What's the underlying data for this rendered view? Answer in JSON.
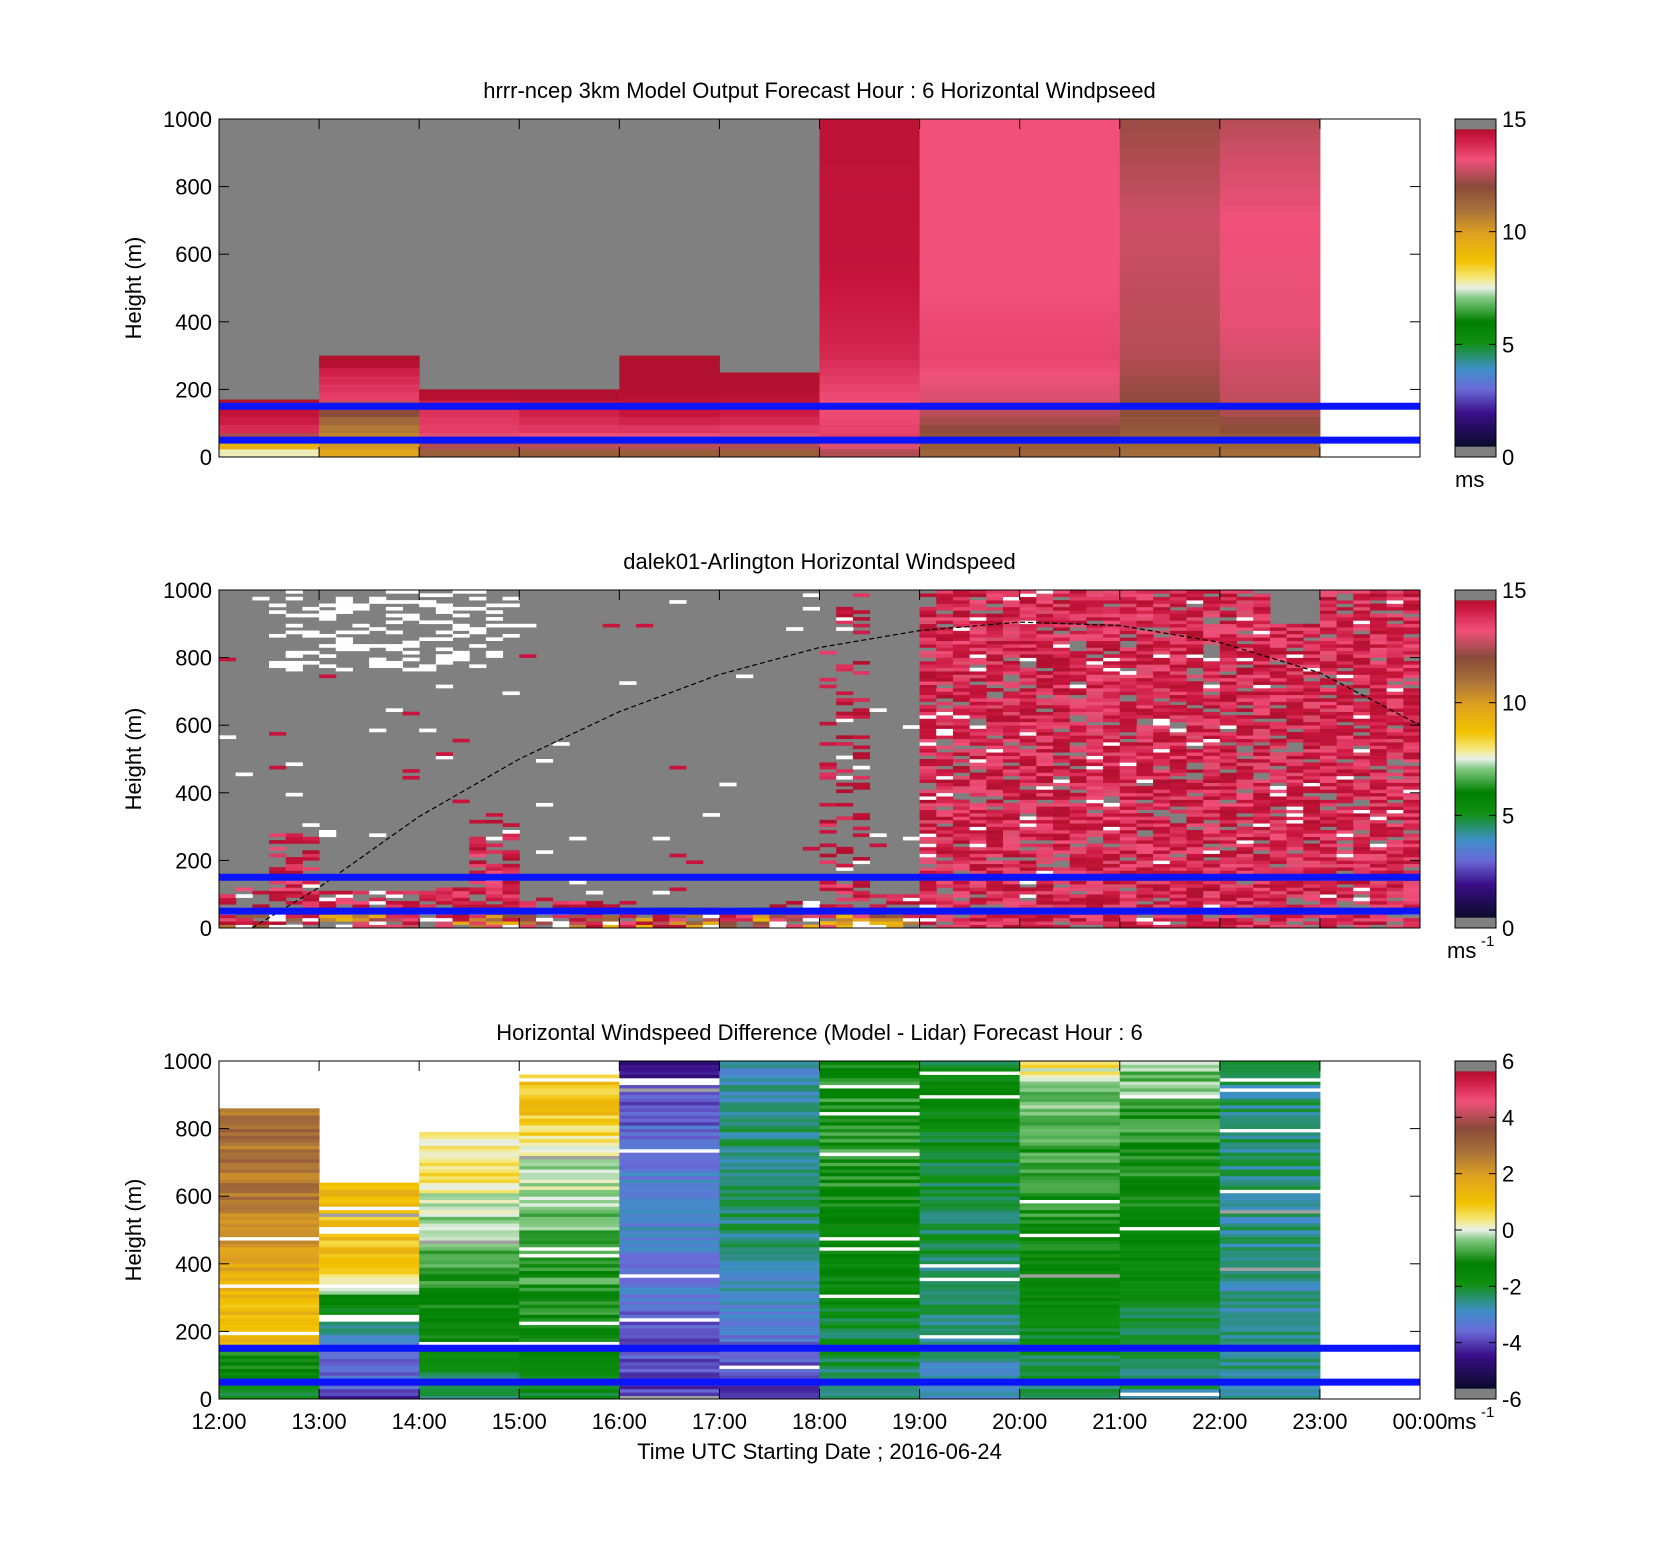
{
  "chart_data": [
    {
      "type": "heatmap",
      "title": "hrrr-ncep 3km Model Output   Forecast Hour : 6 Horizontal Windpseed",
      "ylabel": "Height (m)",
      "xlabel": "",
      "xlim": [
        12,
        24
      ],
      "ylim": [
        0,
        1000
      ],
      "yticks": [
        0,
        200,
        400,
        600,
        800,
        1000
      ],
      "xticks": [
        12,
        13,
        14,
        15,
        16,
        17,
        18,
        19,
        20,
        21,
        22,
        23,
        24
      ],
      "colorbar": {
        "min": 0,
        "max": 15,
        "ticks": [
          0,
          5,
          10,
          15
        ],
        "units": "ms",
        "units_sup": "",
        "scale": "speed"
      },
      "reference_lines": [
        150,
        50
      ],
      "column_profiles": [
        {
          "t0": 12,
          "t1": 13,
          "stops": [
            [
              0,
              6.5
            ],
            [
              30,
              9.5
            ],
            [
              50,
              9
            ],
            [
              60,
              12.4
            ],
            [
              80,
              13.8
            ],
            [
              140,
              14.5
            ],
            [
              170,
              15.5
            ]
          ]
        },
        {
          "t0": 13,
          "t1": 14,
          "stops": [
            [
              0,
              9.5
            ],
            [
              40,
              10.2
            ],
            [
              100,
              11
            ],
            [
              150,
              12.5
            ],
            [
              180,
              13.5
            ],
            [
              250,
              14
            ],
            [
              300,
              15.5
            ]
          ]
        },
        {
          "t0": 14,
          "t1": 15,
          "stops": [
            [
              0,
              11
            ],
            [
              40,
              12.6
            ],
            [
              80,
              13.5
            ],
            [
              150,
              13.8
            ],
            [
              200,
              15.5
            ]
          ]
        },
        {
          "t0": 15,
          "t1": 16,
          "stops": [
            [
              0,
              11
            ],
            [
              40,
              12.7
            ],
            [
              80,
              13.6
            ],
            [
              150,
              14.2
            ],
            [
              200,
              15.5
            ]
          ]
        },
        {
          "t0": 16,
          "t1": 17,
          "stops": [
            [
              0,
              11
            ],
            [
              40,
              12.7
            ],
            [
              90,
              13.8
            ],
            [
              160,
              14.6
            ],
            [
              300,
              15.5
            ]
          ]
        },
        {
          "t0": 17,
          "t1": 18,
          "stops": [
            [
              0,
              11
            ],
            [
              40,
              12.6
            ],
            [
              90,
              13.7
            ],
            [
              160,
              14.4
            ],
            [
              250,
              15.5
            ]
          ]
        },
        {
          "t0": 18,
          "t1": 19,
          "stops": [
            [
              0,
              12.2
            ],
            [
              60,
              13.5
            ],
            [
              160,
              13.2
            ],
            [
              300,
              13.9
            ],
            [
              600,
              14.4
            ],
            [
              1000,
              14.6
            ]
          ]
        },
        {
          "t0": 19,
          "t1": 20,
          "stops": [
            [
              0,
              11.2
            ],
            [
              60,
              11.8
            ],
            [
              160,
              12.9
            ],
            [
              300,
              13.4
            ],
            [
              500,
              13.2
            ],
            [
              1000,
              13.2
            ]
          ]
        },
        {
          "t0": 20,
          "t1": 21,
          "stops": [
            [
              0,
              11.2
            ],
            [
              60,
              11.8
            ],
            [
              160,
              12.9
            ],
            [
              300,
              13.4
            ],
            [
              500,
              13.2
            ],
            [
              1000,
              13.2
            ]
          ]
        },
        {
          "t0": 21,
          "t1": 22,
          "stops": [
            [
              0,
              11
            ],
            [
              60,
              11.5
            ],
            [
              150,
              12
            ],
            [
              300,
              12.5
            ],
            [
              700,
              12.8
            ],
            [
              1000,
              12.2
            ]
          ]
        },
        {
          "t0": 22,
          "t1": 23,
          "stops": [
            [
              0,
              11
            ],
            [
              60,
              11.6
            ],
            [
              150,
              12.6
            ],
            [
              400,
              13.1
            ],
            [
              700,
              13.2
            ],
            [
              900,
              12.8
            ],
            [
              1000,
              12.5
            ]
          ]
        }
      ],
      "background": "gray"
    },
    {
      "type": "heatmap",
      "title": "dalek01-Arlington  Horizontal Windspeed",
      "ylabel": "Height (m)",
      "xlabel": "",
      "xlim": [
        12,
        24
      ],
      "ylim": [
        0,
        1000
      ],
      "yticks": [
        0,
        200,
        400,
        600,
        800,
        1000
      ],
      "xticks": [
        12,
        13,
        14,
        15,
        16,
        17,
        18,
        19,
        20,
        21,
        22,
        23,
        24
      ],
      "colorbar": {
        "min": 0,
        "max": 15,
        "ticks": [
          0,
          5,
          10,
          15
        ],
        "units": "ms",
        "units_sup": "-1",
        "scale": "speed"
      },
      "reference_lines": [
        150,
        50
      ],
      "curve": {
        "style": "dashed",
        "points": [
          [
            12.33,
            0
          ],
          [
            13,
            120
          ],
          [
            14,
            330
          ],
          [
            15,
            500
          ],
          [
            16,
            640
          ],
          [
            17,
            750
          ],
          [
            18,
            830
          ],
          [
            19,
            880
          ],
          [
            20,
            905
          ],
          [
            21,
            895
          ],
          [
            22,
            845
          ],
          [
            23,
            755
          ],
          [
            24,
            600
          ]
        ]
      },
      "column_profiles_30min": [
        {
          "t0": 12.0,
          "top": 120
        },
        {
          "t0": 12.5,
          "top": 280
        },
        {
          "t0": 13.0,
          "top": 110
        },
        {
          "t0": 13.5,
          "top": 110
        },
        {
          "t0": 14.0,
          "top": 120
        },
        {
          "t0": 14.5,
          "top": 320
        },
        {
          "t0": 15.0,
          "top": 90
        },
        {
          "t0": 15.5,
          "top": 80
        },
        {
          "t0": 16.0,
          "top": 60
        },
        {
          "t0": 16.5,
          "top": 60
        },
        {
          "t0": 17.0,
          "top": 60
        },
        {
          "t0": 17.5,
          "top": 80
        },
        {
          "t0": 18.0,
          "top": 1000,
          "sparse": true
        },
        {
          "t0": 18.5,
          "top": 100
        },
        {
          "t0": 19.0,
          "top": 1000
        },
        {
          "t0": 19.5,
          "top": 1000
        },
        {
          "t0": 20.0,
          "top": 1000
        },
        {
          "t0": 20.5,
          "top": 1000
        },
        {
          "t0": 21.0,
          "top": 1000
        },
        {
          "t0": 21.5,
          "top": 1000
        },
        {
          "t0": 22.0,
          "top": 1000
        },
        {
          "t0": 22.5,
          "top": 900
        },
        {
          "t0": 23.0,
          "top": 1000
        },
        {
          "t0": 23.5,
          "top": 1000
        }
      ],
      "background": "gray"
    },
    {
      "type": "heatmap",
      "title": "Horizontal Windspeed Difference (Model - Lidar) Forecast Hour : 6",
      "ylabel": "Height (m)",
      "xlabel": "Time UTC  Starting Date ; 2016-06-24",
      "xlim": [
        12,
        24
      ],
      "ylim": [
        0,
        1000
      ],
      "yticks": [
        0,
        200,
        400,
        600,
        800,
        1000
      ],
      "xticks": [
        12,
        13,
        14,
        15,
        16,
        17,
        18,
        19,
        20,
        21,
        22,
        23,
        24
      ],
      "xtick_labels": [
        "12:00",
        "13:00",
        "14:00",
        "15:00",
        "16:00",
        "17:00",
        "18:00",
        "19:00",
        "20:00",
        "21:00",
        "22:00",
        "23:00",
        "00:00"
      ],
      "colorbar": {
        "min": -6,
        "max": 6,
        "ticks": [
          -6,
          -4,
          -2,
          0,
          2,
          4,
          6
        ],
        "units": "ms",
        "units_sup": "-1",
        "scale": "diff"
      },
      "reference_lines": [
        150,
        50
      ],
      "column_profiles": [
        {
          "t0": 12,
          "t1": 13,
          "top": 860,
          "stops": [
            [
              0,
              -2
            ],
            [
              60,
              -1.5
            ],
            [
              150,
              -1
            ],
            [
              160,
              1.2
            ],
            [
              300,
              1.3
            ],
            [
              400,
              1.8
            ],
            [
              600,
              2.7
            ],
            [
              800,
              2.8
            ],
            [
              860,
              2.5
            ]
          ]
        },
        {
          "t0": 13,
          "t1": 14,
          "top": 640,
          "stops": [
            [
              0,
              -4
            ],
            [
              90,
              -3.5
            ],
            [
              150,
              -3.2
            ],
            [
              160,
              -2.8
            ],
            [
              250,
              -2.3
            ],
            [
              330,
              -0.3
            ],
            [
              400,
              1
            ],
            [
              640,
              1.1
            ]
          ]
        },
        {
          "t0": 14,
          "t1": 15,
          "top": 790,
          "stops": [
            [
              0,
              -2.5
            ],
            [
              150,
              -1.5
            ],
            [
              300,
              -1.2
            ],
            [
              500,
              -0.4
            ],
            [
              700,
              0.6
            ],
            [
              790,
              0.3
            ]
          ]
        },
        {
          "t0": 15,
          "t1": 16,
          "top": 960,
          "stops": [
            [
              0,
              -2
            ],
            [
              150,
              -1.2
            ],
            [
              400,
              -0.8
            ],
            [
              700,
              0
            ],
            [
              850,
              1
            ],
            [
              960,
              0.8
            ]
          ]
        },
        {
          "t0": 16,
          "t1": 17,
          "top": 1000,
          "stops": [
            [
              0,
              -4
            ],
            [
              200,
              -3.8
            ],
            [
              300,
              -3.4
            ],
            [
              500,
              -3.1
            ],
            [
              700,
              -3.3
            ],
            [
              900,
              -3.8
            ],
            [
              1000,
              -4.8
            ]
          ]
        },
        {
          "t0": 17,
          "t1": 18,
          "top": 1000,
          "stops": [
            [
              0,
              -4
            ],
            [
              150,
              -3.6
            ],
            [
              300,
              -3
            ],
            [
              500,
              -2.4
            ],
            [
              800,
              -2.4
            ],
            [
              1000,
              -2.8
            ]
          ]
        },
        {
          "t0": 18,
          "t1": 19,
          "top": 1000,
          "stops": [
            [
              0,
              -2.2
            ],
            [
              150,
              -2.2
            ],
            [
              300,
              -1.7
            ],
            [
              600,
              -1.2
            ],
            [
              800,
              -0.8
            ],
            [
              1000,
              -1.2
            ]
          ]
        },
        {
          "t0": 19,
          "t1": 20,
          "top": 1000,
          "stops": [
            [
              0,
              -3
            ],
            [
              150,
              -2.6
            ],
            [
              300,
              -2.3
            ],
            [
              600,
              -2.2
            ],
            [
              900,
              -1.6
            ],
            [
              1000,
              -2
            ]
          ]
        },
        {
          "t0": 20,
          "t1": 21,
          "top": 1000,
          "stops": [
            [
              0,
              -2.6
            ],
            [
              150,
              -2
            ],
            [
              400,
              -1.2
            ],
            [
              700,
              -0.8
            ],
            [
              900,
              -0.5
            ],
            [
              1000,
              0.5
            ]
          ]
        },
        {
          "t0": 21,
          "t1": 22,
          "top": 1000,
          "stops": [
            [
              0,
              -2.5
            ],
            [
              150,
              -2.4
            ],
            [
              400,
              -1.6
            ],
            [
              700,
              -1.1
            ],
            [
              900,
              -0.6
            ],
            [
              1000,
              -0.4
            ]
          ]
        },
        {
          "t0": 22,
          "t1": 23,
          "top": 1000,
          "stops": [
            [
              0,
              -2.6
            ],
            [
              150,
              -2.6
            ],
            [
              400,
              -2.6
            ],
            [
              700,
              -2.4
            ],
            [
              1000,
              -2.5
            ]
          ]
        }
      ],
      "background": "white"
    }
  ]
}
